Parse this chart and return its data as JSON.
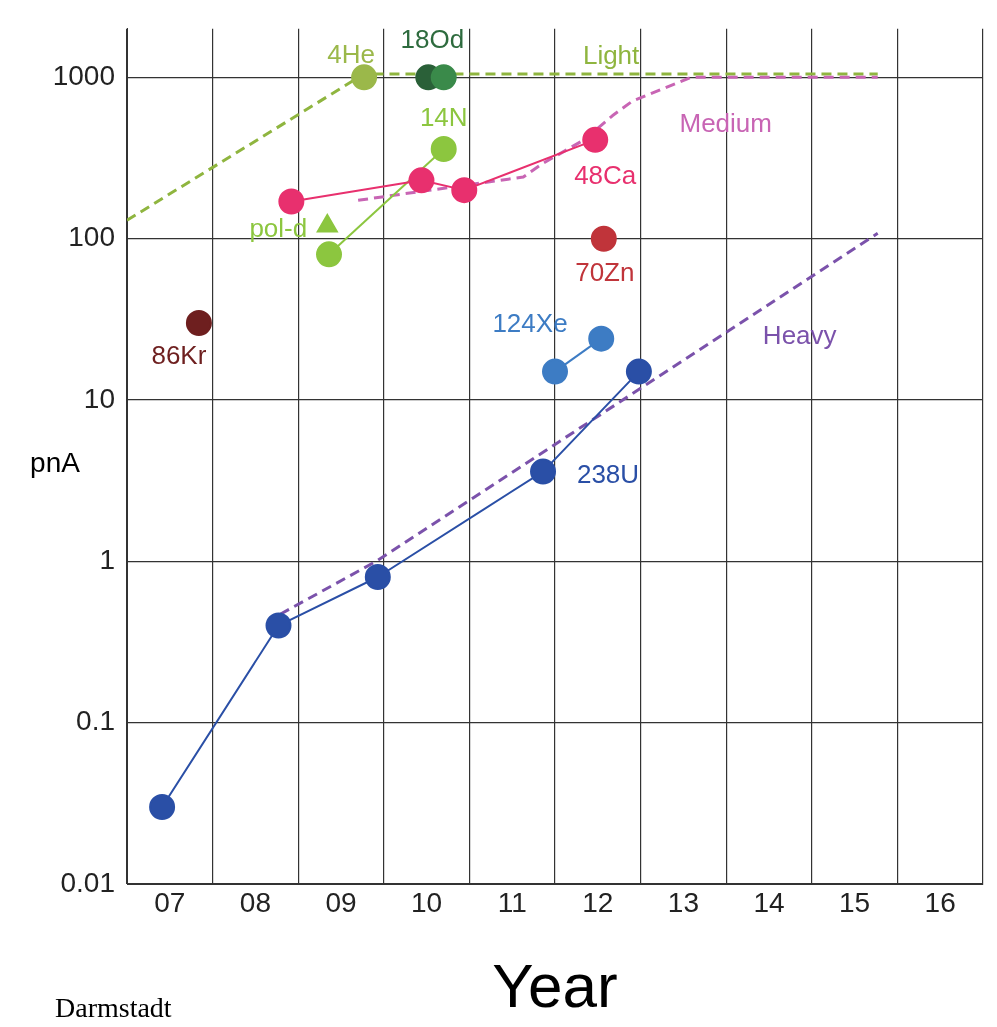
{
  "chart_data": {
    "type": "line",
    "xlabel": "Year",
    "ylabel": "pnA",
    "log": "y",
    "grid": true,
    "legend": false,
    "xlim": [
      6.5,
      16.5
    ],
    "xticks": [
      {
        "value": 6.5,
        "label": null
      },
      {
        "value": 7,
        "label": "07"
      },
      {
        "value": 7.5,
        "label": null
      },
      {
        "value": 8,
        "label": "08"
      },
      {
        "value": 8.5,
        "label": null
      },
      {
        "value": 9,
        "label": "09"
      },
      {
        "value": 9.5,
        "label": null
      },
      {
        "value": 10,
        "label": "10"
      },
      {
        "value": 10.5,
        "label": null
      },
      {
        "value": 11,
        "label": "11"
      },
      {
        "value": 11.5,
        "label": null
      },
      {
        "value": 12,
        "label": "12"
      },
      {
        "value": 12.5,
        "label": null
      },
      {
        "value": 13,
        "label": "13"
      },
      {
        "value": 13.5,
        "label": null
      },
      {
        "value": 14,
        "label": "14"
      },
      {
        "value": 14.5,
        "label": null
      },
      {
        "value": 15,
        "label": "15"
      },
      {
        "value": 15.5,
        "label": null
      },
      {
        "value": 16,
        "label": "16"
      },
      {
        "value": 16.5,
        "label": null
      }
    ],
    "ylim": [
      0.01,
      2000
    ],
    "yticks": [
      0.01,
      0.1,
      1,
      10,
      100,
      1000
    ],
    "annotations": [
      "Darmstadt"
    ],
    "series": [
      {
        "name": "Light",
        "type": "line",
        "line_style": "dashed",
        "marker": "none",
        "color": "#8fb53f",
        "x": [
          6.5,
          9.27,
          15.27
        ],
        "values": [
          130,
          1050,
          1050
        ]
      },
      {
        "name": "Medium",
        "type": "line",
        "line_style": "dashed",
        "marker": "none",
        "color": "#c865b4",
        "x": [
          9.2,
          11.13,
          11.34,
          11.84,
          12.17,
          12.4,
          13.09,
          15.27
        ],
        "values": [
          173,
          241,
          289,
          410,
          578,
          710,
          1000,
          1000
        ]
      },
      {
        "name": "Heavy",
        "type": "line",
        "line_style": "dashed",
        "marker": "none",
        "color": "#7b52ab",
        "x": [
          8.29,
          9.41,
          15.27
        ],
        "values": [
          0.47,
          1,
          108
        ]
      },
      {
        "name": "4He",
        "type": "scatter",
        "marker": "circle",
        "color": "#9bb84a",
        "x": [
          9.27
        ],
        "values": [
          1000
        ]
      },
      {
        "name": "18Od",
        "type": "scatter",
        "marker": "circle",
        "color": "#2e6b3e",
        "colors": [
          "#2a6038",
          "#3a8a4a"
        ],
        "x": [
          10.02,
          10.2
        ],
        "values": [
          1000,
          1000
        ]
      },
      {
        "name": "14N",
        "type": "line",
        "line_style": "solid",
        "marker": "circle",
        "color": "#8cc63f",
        "x": [
          8.86,
          10.2
        ],
        "values": [
          80,
          360
        ]
      },
      {
        "name": "pol-d",
        "type": "scatter",
        "marker": "triangle",
        "color": "#8cc63f",
        "x": [
          8.84
        ],
        "values": [
          120
        ]
      },
      {
        "name": "48Ca",
        "type": "line",
        "line_style": "solid",
        "marker": "circle",
        "color": "#e8306e",
        "x": [
          8.42,
          9.94,
          10.44,
          11.97
        ],
        "values": [
          170,
          230,
          200,
          410
        ]
      },
      {
        "name": "70Zn",
        "type": "scatter",
        "marker": "circle",
        "color": "#c0343a",
        "x": [
          12.07
        ],
        "values": [
          100
        ]
      },
      {
        "name": "86Kr",
        "type": "scatter",
        "marker": "circle",
        "color": "#6e1f1f",
        "x": [
          7.34
        ],
        "values": [
          30
        ]
      },
      {
        "name": "124Xe",
        "type": "line",
        "line_style": "solid",
        "marker": "circle",
        "color": "#3d7cc4",
        "x": [
          11.5,
          12.04
        ],
        "values": [
          15,
          24
        ]
      },
      {
        "name": "238U",
        "type": "line",
        "line_style": "solid",
        "marker": "circle",
        "color": "#2a4fa6",
        "x": [
          6.91,
          8.27,
          9.43,
          11.36,
          12.48
        ],
        "values": [
          0.03,
          0.4,
          0.8,
          3.6,
          15
        ]
      }
    ]
  }
}
